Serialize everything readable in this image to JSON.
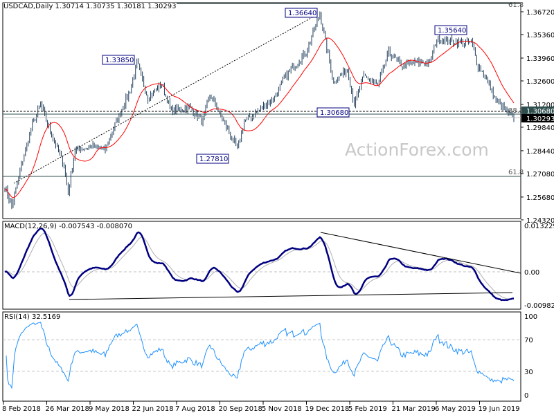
{
  "header": {
    "title": "USDCAD,Daily  1.30714 1.30735 1.30181 1.30293"
  },
  "watermark": "ActionForex.com",
  "chart_data": [
    {
      "type": "ohlc",
      "name": "price",
      "yticks": [
        "1.36720",
        "1.35360",
        "1.33960",
        "1.32600",
        "1.31200",
        "1.29840",
        "1.28440",
        "1.27080",
        "1.25680",
        "1.24320"
      ],
      "ytick_values": [
        1.3672,
        1.3536,
        1.3396,
        1.326,
        1.312,
        1.2984,
        1.2844,
        1.2708,
        1.2568,
        1.2432
      ],
      "ylim": [
        1.2425,
        1.3705
      ],
      "xticks": [
        "8 Feb 2018",
        "26 Mar 2018",
        "9 May 2018",
        "22 Jun 2018",
        "7 Aug 2018",
        "20 Sep 2018",
        "5 Nov 2018",
        "19 Dec 2018",
        "5 Feb 2019",
        "21 Mar 2019",
        "6 May 2019",
        "19 Jun 2019"
      ],
      "approx_close_path": [
        [
          0,
          1.263
        ],
        [
          5,
          1.251
        ],
        [
          13,
          1.279
        ],
        [
          20,
          1.3
        ],
        [
          26,
          1.312
        ],
        [
          33,
          1.296
        ],
        [
          43,
          1.276
        ],
        [
          46,
          1.259
        ],
        [
          51,
          1.285
        ],
        [
          63,
          1.287
        ],
        [
          73,
          1.285
        ],
        [
          81,
          1.302
        ],
        [
          91,
          1.32
        ],
        [
          96,
          1.337
        ],
        [
          104,
          1.316
        ],
        [
          114,
          1.324
        ],
        [
          121,
          1.308
        ],
        [
          134,
          1.31
        ],
        [
          144,
          1.302
        ],
        [
          149,
          1.318
        ],
        [
          159,
          1.302
        ],
        [
          169,
          1.285
        ],
        [
          174,
          1.302
        ],
        [
          184,
          1.308
        ],
        [
          196,
          1.316
        ],
        [
          204,
          1.329
        ],
        [
          219,
          1.343
        ],
        [
          229,
          1.366
        ],
        [
          234,
          1.345
        ],
        [
          239,
          1.325
        ],
        [
          249,
          1.333
        ],
        [
          254,
          1.312
        ],
        [
          261,
          1.329
        ],
        [
          271,
          1.323
        ],
        [
          279,
          1.343
        ],
        [
          289,
          1.335
        ],
        [
          299,
          1.337
        ],
        [
          309,
          1.337
        ],
        [
          314,
          1.351
        ],
        [
          329,
          1.349
        ],
        [
          339,
          1.349
        ],
        [
          344,
          1.335
        ],
        [
          349,
          1.329
        ],
        [
          356,
          1.316
        ],
        [
          364,
          1.308
        ],
        [
          370,
          1.3029
        ]
      ],
      "last_price": "1.30293",
      "level_label": "1.30680",
      "annotations": [
        "1.36640",
        "1.33850",
        "1.35640",
        "1.30680",
        "1.27810"
      ],
      "fib_labels": [
        "61.8",
        "38.2",
        "61.8"
      ],
      "ma_period": 20
    },
    {
      "type": "line",
      "name": "macd",
      "title": "MACD(12,26,9) -0.007543 -0.008070",
      "yticks": [
        "0.013229",
        "0.00",
        "-0.00982"
      ],
      "ylim": [
        -0.011,
        0.0142
      ]
    },
    {
      "type": "line",
      "name": "rsi",
      "title": "RSI(14) 32.5169",
      "yticks": [
        "100",
        "70",
        "30",
        "0"
      ],
      "ylim": [
        0,
        100
      ]
    }
  ],
  "colors": {
    "bars": "#1f3d5a",
    "ma": "#ff0000",
    "macd": "#000080",
    "signal": "#b0b0b0",
    "rsi": "#1e90ff",
    "label_border": "#000080"
  }
}
